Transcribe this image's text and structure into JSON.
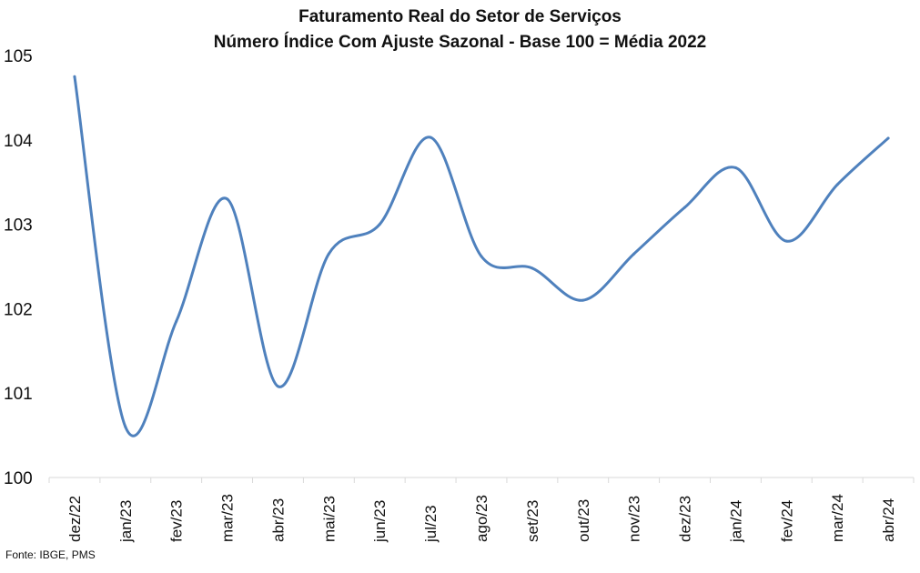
{
  "title": "Faturamento Real do Setor de Serviços",
  "subtitle": "Número Índice Com Ajuste Sazonal - Base 100 = Média 2022",
  "source": "Fonte: IBGE, PMS",
  "colors": {
    "line": "#4f81bd",
    "axis": "#d9d9d9"
  },
  "chart_data": {
    "type": "line",
    "title": "Faturamento Real do Setor de Serviços",
    "subtitle": "Número Índice Com Ajuste Sazonal - Base 100 = Média 2022",
    "xlabel": "",
    "ylabel": "",
    "ylim": [
      100,
      105
    ],
    "y_ticks": [
      100,
      101,
      102,
      103,
      104,
      105
    ],
    "grid": false,
    "smooth": true,
    "categories": [
      "dez/22",
      "jan/23",
      "fev/23",
      "mar/23",
      "abr/23",
      "mai/23",
      "jun/23",
      "jul/23",
      "ago/23",
      "set/23",
      "out/23",
      "nov/23",
      "dez/23",
      "jan/24",
      "fev/24",
      "mar/24",
      "abr/24"
    ],
    "series": [
      {
        "values": [
          104.75,
          100.6,
          101.85,
          103.3,
          101.08,
          102.65,
          103.0,
          104.03,
          102.62,
          102.48,
          102.1,
          102.65,
          103.2,
          103.67,
          102.8,
          103.47,
          104.02
        ]
      }
    ]
  }
}
